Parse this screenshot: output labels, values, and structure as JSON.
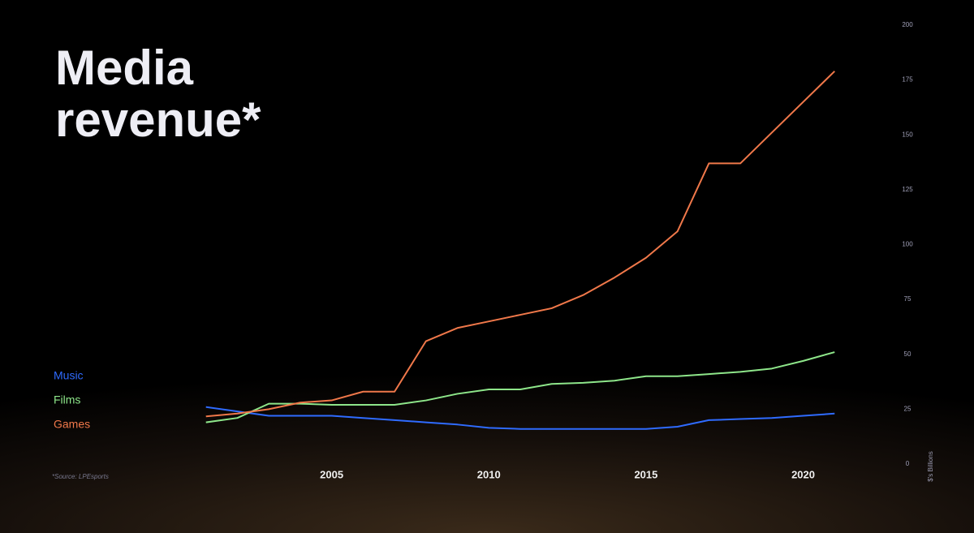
{
  "chart_data": {
    "type": "line",
    "title": "Media revenue*",
    "source": "*Source: LPEsports",
    "y_label": "$'s Billions",
    "x": [
      2001,
      2002,
      2003,
      2004,
      2005,
      2006,
      2007,
      2008,
      2009,
      2010,
      2011,
      2012,
      2013,
      2014,
      2015,
      2016,
      2017,
      2018,
      2019,
      2020,
      2021
    ],
    "series": [
      {
        "name": "Music",
        "color": "#2f6bff",
        "values": [
          26,
          24,
          22,
          22,
          22,
          21,
          20,
          19,
          18,
          16.5,
          16,
          16,
          16,
          16,
          16,
          17,
          20,
          20.5,
          21,
          22,
          23
        ]
      },
      {
        "name": "Films",
        "color": "#8ee68a",
        "values": [
          19,
          21,
          27.5,
          27.5,
          27,
          27,
          27,
          29,
          32,
          34,
          34,
          36.5,
          37,
          38,
          40,
          40,
          41,
          42,
          43.5,
          47,
          51
        ]
      },
      {
        "name": "Games",
        "color": "#f0784a",
        "values": [
          21.7,
          23,
          25,
          28,
          29,
          33,
          33,
          56,
          62,
          65,
          68,
          71,
          77,
          85,
          94,
          106,
          137,
          137,
          151,
          165,
          179
        ]
      }
    ],
    "xlim": [
      2000,
      2022
    ],
    "xticks": [
      2005,
      2010,
      2015,
      2020
    ],
    "ylim": [
      0,
      200
    ],
    "yticks": [
      0,
      25,
      50,
      75,
      100,
      125,
      150,
      175,
      200
    ],
    "y_axis_side": "right",
    "grid": false
  }
}
